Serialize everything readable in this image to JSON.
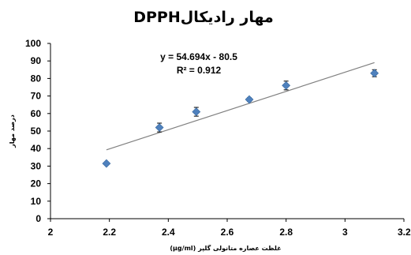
{
  "chart_data": {
    "type": "scatter",
    "title": "مهار رادیکالDPPH",
    "xlabel": "غلظت عصاره متانولی گلپر (µg/ml)",
    "ylabel": "درصد مهار",
    "xlim": [
      2,
      3.2
    ],
    "ylim": [
      0,
      100
    ],
    "xticks": [
      "2",
      "2.2",
      "2.4",
      "2.6",
      "2.8",
      "3",
      "3.2"
    ],
    "yticks": [
      "0",
      "10",
      "20",
      "30",
      "40",
      "50",
      "60",
      "70",
      "80",
      "90",
      "100"
    ],
    "grid": false,
    "points": [
      {
        "x": 2.19,
        "y": 31.5,
        "err": 0
      },
      {
        "x": 2.37,
        "y": 52,
        "err": 2.5
      },
      {
        "x": 2.495,
        "y": 61,
        "err": 2.5
      },
      {
        "x": 2.675,
        "y": 68,
        "err": 1
      },
      {
        "x": 2.8,
        "y": 76,
        "err": 2.5
      },
      {
        "x": 3.1,
        "y": 83,
        "err": 2
      }
    ],
    "trendline": {
      "slope": 54.694,
      "intercept": -80.5,
      "x_range": [
        2.19,
        3.1
      ]
    },
    "annotations": [
      "y = 54.694x - 80.5",
      "R² = 0.912"
    ],
    "colors": {
      "marker": "#4f81bd",
      "trendline": "#808080",
      "errorbar": "#000000"
    }
  }
}
